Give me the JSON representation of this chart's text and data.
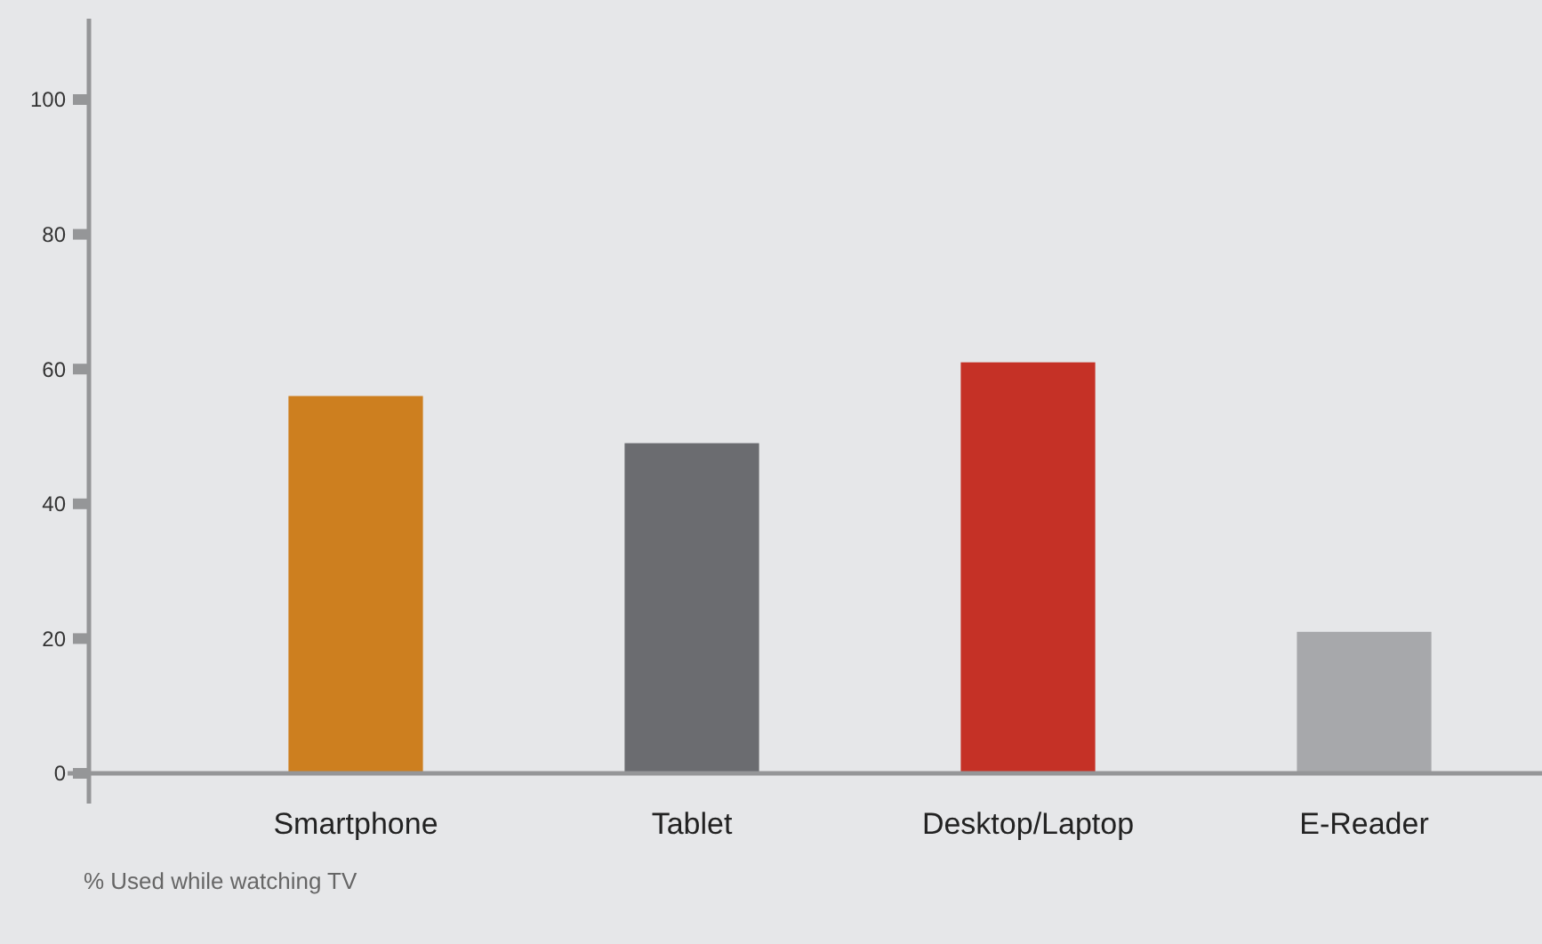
{
  "chart_data": {
    "type": "bar",
    "categories": [
      "Smartphone",
      "Tablet",
      "Desktop/Laptop",
      "E-Reader"
    ],
    "values": [
      56,
      49,
      61,
      21
    ],
    "colors": [
      "#cd7f1f",
      "#6b6c70",
      "#c53126",
      "#a7a8ab"
    ],
    "ylim": [
      0,
      112
    ],
    "yticks": [
      0,
      20,
      40,
      60,
      80,
      100
    ],
    "grid": false,
    "annotations": [
      "% Used while watching TV"
    ]
  }
}
